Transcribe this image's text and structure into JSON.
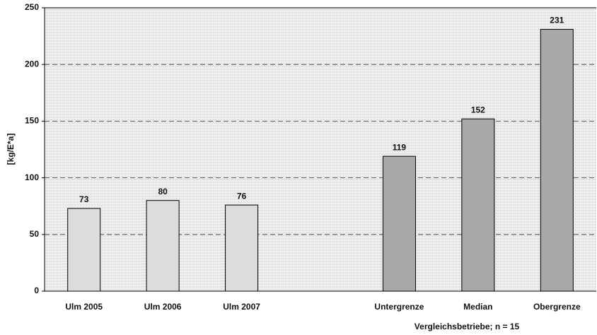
{
  "chart_data": {
    "type": "bar",
    "y_label": "[kg/E*a]",
    "annotation": "Vergleichsbetriebe; n = 15",
    "categories": [
      "Ulm 2005",
      "Ulm 2006",
      "Ulm 2007",
      null,
      "Untergrenze",
      "Median",
      "Obergrenze"
    ],
    "values": [
      73,
      80,
      76,
      null,
      119,
      152,
      231
    ],
    "colors": [
      "#dcdcdc",
      "#dcdcdc",
      "#dcdcdc",
      null,
      "#a9a9a9",
      "#a9a9a9",
      "#a9a9a9"
    ],
    "ylim": [
      0,
      250
    ],
    "yticks": [
      0,
      50,
      100,
      150,
      200,
      250
    ],
    "grid": true
  }
}
